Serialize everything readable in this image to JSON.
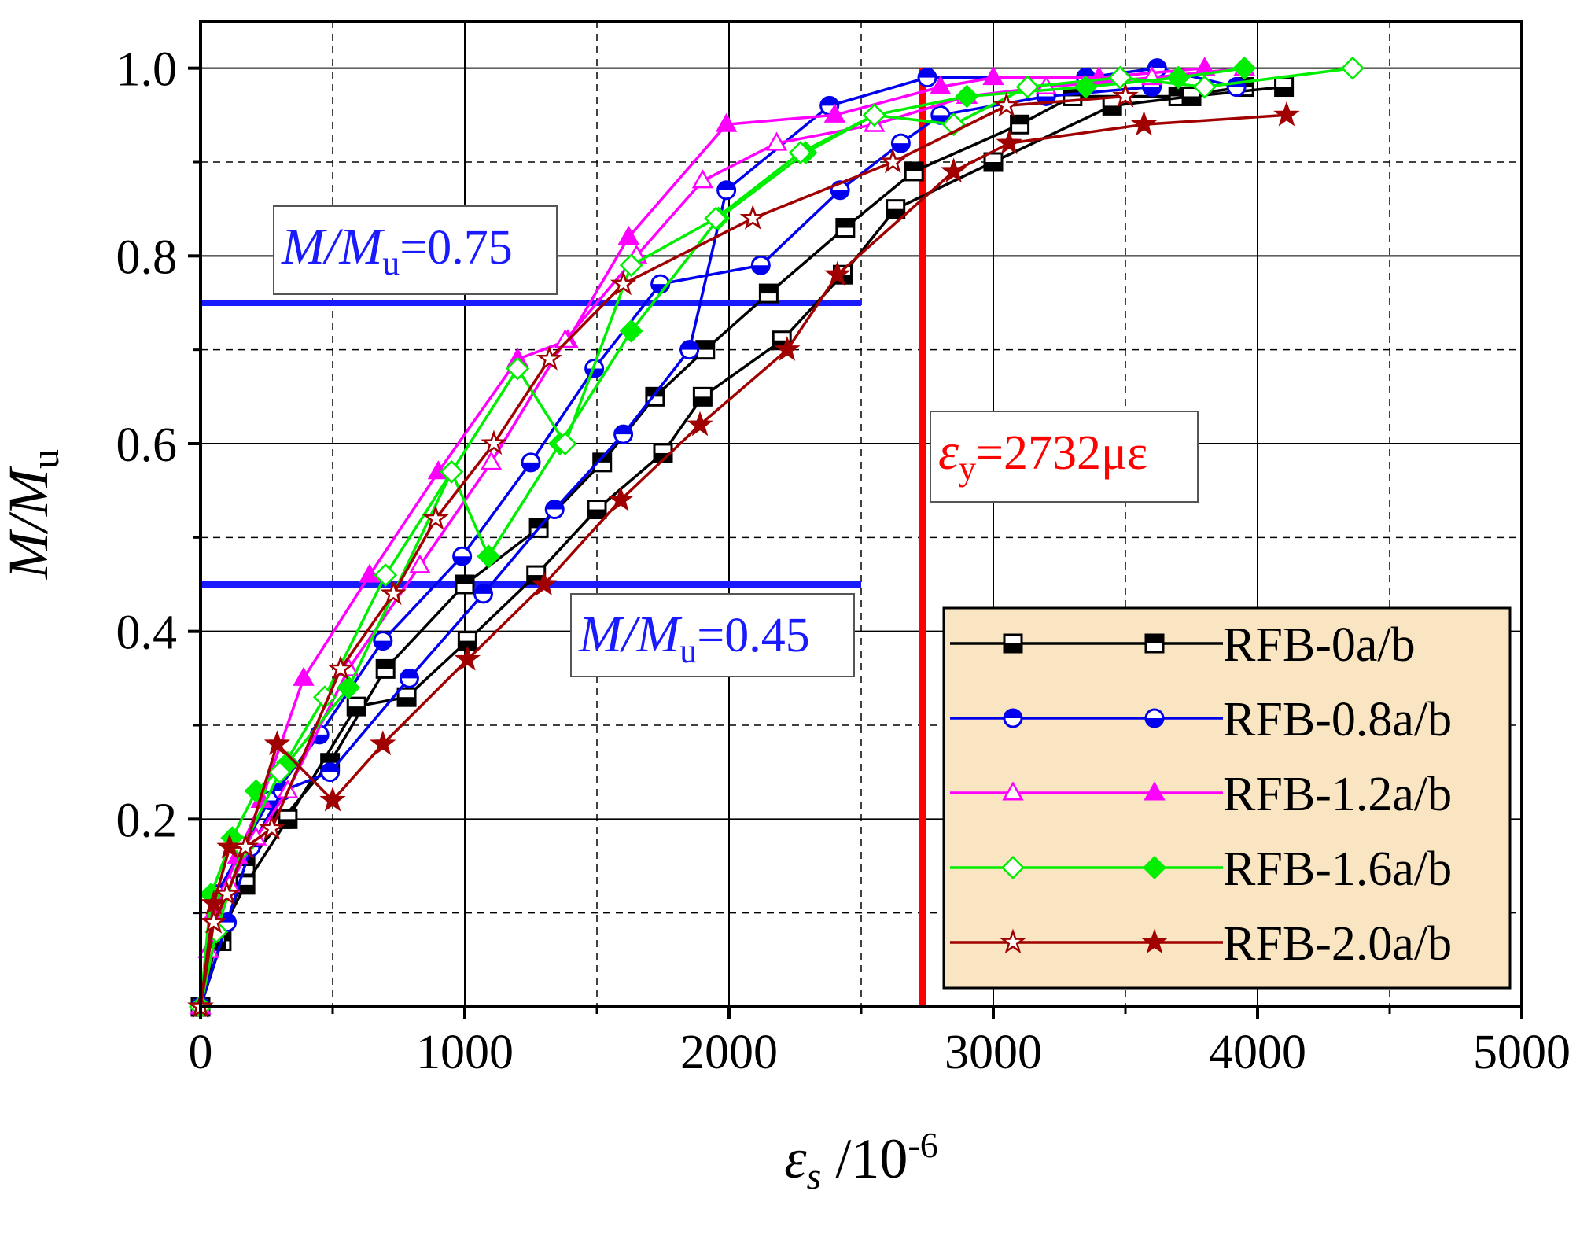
{
  "chart_data": {
    "type": "line",
    "title": "",
    "xlabel_main": "ε",
    "xlabel_sub": "s",
    "xlabel_unit": " /10",
    "xlabel_exp": "-6",
    "ylabel_main": "M/M",
    "ylabel_sub": "u",
    "xlim": [
      0,
      5000
    ],
    "ylim": [
      0,
      1.05
    ],
    "x_ticks": [
      0,
      1000,
      2000,
      3000,
      4000,
      5000
    ],
    "x_tick_labels": [
      "0",
      "1000",
      "2000",
      "3000",
      "4000",
      "5000"
    ],
    "y_ticks": [
      0.2,
      0.4,
      0.6,
      0.8,
      1.0
    ],
    "y_tick_labels": [
      "0.2",
      "0.4",
      "0.6",
      "0.8",
      "1.0"
    ],
    "grid": true,
    "legend_position": "bottom-right",
    "legend_background": "#fae5c3",
    "reference_lines": [
      {
        "orientation": "horizontal",
        "value": 0.75,
        "x_end": 2500,
        "color": "#1a1aff",
        "label_main": "M/M",
        "label_sub": "u",
        "label_value": "=0.75"
      },
      {
        "orientation": "horizontal",
        "value": 0.45,
        "x_end": 2500,
        "color": "#1a1aff",
        "label_main": "M/M",
        "label_sub": "u",
        "label_value": "=0.45"
      },
      {
        "orientation": "vertical",
        "value": 2732,
        "color": "#ff0000",
        "label_main": "ε",
        "label_sub": "y",
        "label_value": "=2732με"
      }
    ],
    "series": [
      {
        "name": "RFB-0a/b",
        "color": "#000000",
        "marker": "square",
        "a": {
          "x": [
            0,
            80,
            170,
            310,
            490,
            700,
            1000,
            1280,
            1520,
            1720,
            1910,
            2150,
            2440,
            2700,
            3100,
            3300,
            3700,
            3950
          ],
          "y": [
            0,
            0.07,
            0.15,
            0.2,
            0.26,
            0.36,
            0.45,
            0.51,
            0.58,
            0.65,
            0.7,
            0.76,
            0.83,
            0.89,
            0.94,
            0.97,
            0.97,
            0.98
          ]
        },
        "b": {
          "x": [
            0,
            60,
            170,
            330,
            590,
            780,
            1010,
            1270,
            1500,
            1750,
            1900,
            2200,
            2430,
            2630,
            3000,
            3450,
            3750,
            4100
          ],
          "y": [
            0,
            0.07,
            0.13,
            0.2,
            0.32,
            0.33,
            0.39,
            0.46,
            0.53,
            0.59,
            0.65,
            0.71,
            0.78,
            0.85,
            0.9,
            0.96,
            0.97,
            0.98
          ]
        }
      },
      {
        "name": "RFB-0.8a/b",
        "color": "#0000ee",
        "marker": "circle",
        "a": {
          "x": [
            0,
            60,
            160,
            260,
            450,
            690,
            990,
            1250,
            1490,
            1740,
            2120,
            2420,
            2650,
            2800,
            3200,
            3600
          ],
          "y": [
            0,
            0.12,
            0.17,
            0.22,
            0.29,
            0.39,
            0.48,
            0.58,
            0.68,
            0.77,
            0.79,
            0.87,
            0.92,
            0.95,
            0.97,
            0.98
          ]
        },
        "b": {
          "x": [
            0,
            100,
            190,
            310,
            490,
            790,
            1070,
            1340,
            1600,
            1850,
            1990,
            2380,
            2750,
            3350,
            3620,
            3920
          ],
          "y": [
            0,
            0.09,
            0.17,
            0.23,
            0.25,
            0.35,
            0.44,
            0.53,
            0.61,
            0.7,
            0.87,
            0.96,
            0.99,
            0.99,
            1.0,
            0.98
          ]
        }
      },
      {
        "name": "RFB-1.2a/b",
        "color": "#ff00ff",
        "marker": "triangle",
        "a": {
          "x": [
            0,
            50,
            140,
            230,
            390,
            640,
            900,
            1200,
            1390,
            1620,
            1990,
            2400,
            2800,
            3000,
            3400,
            3800
          ],
          "y": [
            0,
            0.1,
            0.16,
            0.22,
            0.35,
            0.46,
            0.57,
            0.69,
            0.71,
            0.82,
            0.94,
            0.95,
            0.98,
            0.99,
            0.99,
            1.0
          ]
        },
        "b": {
          "x": [
            0,
            30,
            110,
            210,
            330,
            560,
            830,
            1100,
            1380,
            1650,
            1900,
            2180,
            2550,
            2900,
            3200,
            3600,
            3950
          ],
          "y": [
            0,
            0.06,
            0.13,
            0.18,
            0.23,
            0.36,
            0.47,
            0.58,
            0.71,
            0.8,
            0.88,
            0.92,
            0.94,
            0.97,
            0.98,
            0.99,
            1.0
          ]
        }
      },
      {
        "name": "RFB-1.6a/b",
        "color": "#00ee00",
        "marker": "diamond",
        "a": {
          "x": [
            0,
            40,
            120,
            210,
            330,
            560,
            950,
            1090,
            1360,
            1630,
            1960,
            2290,
            2550,
            2900,
            3350,
            3700,
            3950
          ],
          "y": [
            0,
            0.12,
            0.18,
            0.23,
            0.26,
            0.34,
            0.57,
            0.48,
            0.6,
            0.72,
            0.84,
            0.91,
            0.95,
            0.97,
            0.98,
            0.99,
            1.0
          ]
        },
        "b": {
          "x": [
            0,
            60,
            160,
            300,
            470,
            700,
            950,
            1200,
            1380,
            1630,
            1950,
            2270,
            2550,
            2850,
            3130,
            3480,
            3800,
            4360
          ],
          "y": [
            0,
            0.08,
            0.17,
            0.25,
            0.33,
            0.46,
            0.57,
            0.68,
            0.6,
            0.79,
            0.84,
            0.91,
            0.95,
            0.94,
            0.98,
            0.99,
            0.98,
            1.0
          ]
        }
      },
      {
        "name": "RFB-2.0a/b",
        "color": "#a00000",
        "marker": "star",
        "a": {
          "x": [
            0,
            50,
            110,
            170,
            290,
            500,
            690,
            1010,
            1300,
            1590,
            1890,
            2220,
            2410,
            2850,
            3060,
            3570,
            4110
          ],
          "y": [
            0,
            0.11,
            0.17,
            0.17,
            0.28,
            0.22,
            0.28,
            0.37,
            0.45,
            0.54,
            0.62,
            0.7,
            0.78,
            0.89,
            0.92,
            0.94,
            0.95
          ]
        },
        "b": {
          "x": [
            0,
            50,
            100,
            170,
            270,
            530,
            730,
            890,
            1110,
            1320,
            1600,
            2090,
            2620,
            3050,
            3500
          ],
          "y": [
            0,
            0.09,
            0.12,
            0.17,
            0.19,
            0.36,
            0.44,
            0.52,
            0.6,
            0.69,
            0.77,
            0.84,
            0.9,
            0.96,
            0.97
          ]
        }
      }
    ]
  }
}
